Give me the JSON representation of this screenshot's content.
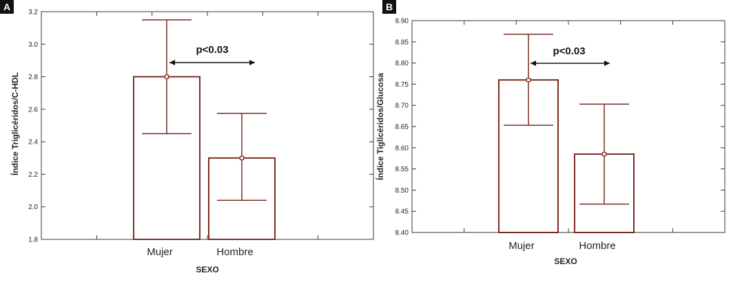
{
  "colors": {
    "bar_stroke": "#7a2a22",
    "bar_fill": "#ffffff",
    "axis": "#333333",
    "panel_label_bg": "#111111"
  },
  "chart_data": [
    {
      "panel": "A",
      "type": "bar",
      "title": "",
      "xlabel": "SEXO",
      "ylabel": "Índice Triglicéridos/C-HDL",
      "categories": [
        "Mujer",
        "Hombre"
      ],
      "values": [
        2.8,
        2.3
      ],
      "error_low": [
        2.45,
        2.04
      ],
      "error_high": [
        3.15,
        2.575
      ],
      "ylim": [
        1.8,
        3.2
      ],
      "yticks": [
        "1.8",
        "2.0",
        "2.2",
        "2.4",
        "2.6",
        "2.8",
        "3.0",
        "3.2"
      ],
      "annotation": "p<0.03",
      "grid": false
    },
    {
      "panel": "B",
      "type": "bar",
      "title": "",
      "xlabel": "SEXO",
      "ylabel": "Índice Tiglicéridos/Glucosa",
      "categories": [
        "Mujer",
        "Hombre"
      ],
      "values": [
        8.76,
        8.585
      ],
      "error_low": [
        8.653,
        8.467
      ],
      "error_high": [
        8.868,
        8.703
      ],
      "ylim": [
        8.4,
        8.9
      ],
      "yticks": [
        "8.40",
        "8.45",
        "8.50",
        "8.55",
        "8.60",
        "8.65",
        "8.70",
        "8.75",
        "8.80",
        "8.85",
        "8.90"
      ],
      "annotation": "p<0.03",
      "grid": false
    }
  ]
}
